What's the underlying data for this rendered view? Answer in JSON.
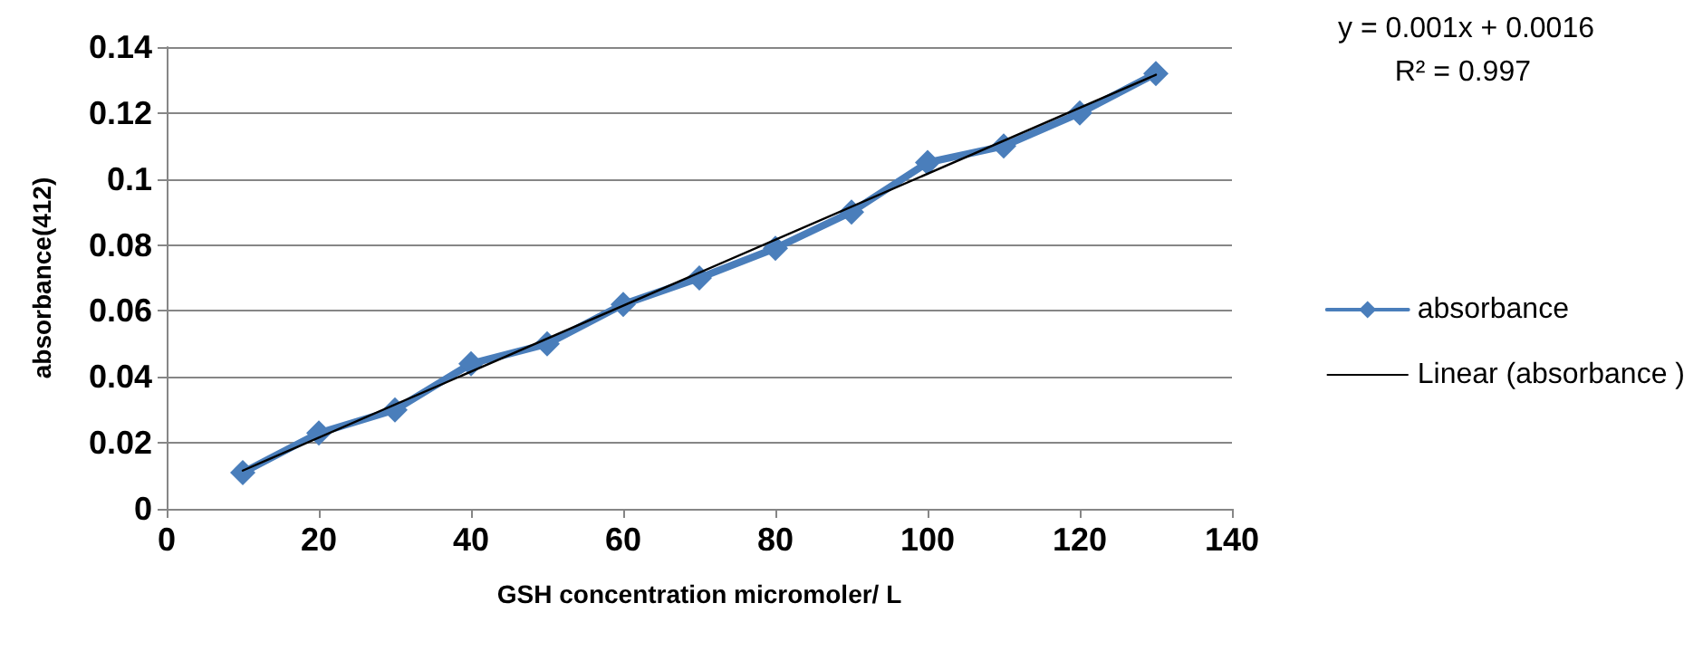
{
  "chart_data": {
    "type": "line",
    "xlabel": "GSH concentration micromoler/ L",
    "ylabel": "absorbance(412)",
    "xlim": [
      0,
      140
    ],
    "xticks": [
      0,
      20,
      40,
      60,
      80,
      100,
      120,
      140
    ],
    "ylim": [
      0,
      0.14
    ],
    "yticks": [
      0,
      0.02,
      0.04,
      0.06,
      0.08,
      0.1,
      0.12,
      0.14
    ],
    "grid": "y",
    "legend": "right",
    "marker": "diamond",
    "line_style": "solid",
    "annotations": [
      "y = 0.001x + 0.0016",
      "R² = 0.997"
    ],
    "series": [
      {
        "name": "absorbance",
        "color": "#4a7ebb",
        "x": [
          10,
          20,
          30,
          40,
          50,
          60,
          70,
          80,
          90,
          100,
          110,
          120,
          130
        ],
        "values": [
          0.011,
          0.023,
          0.03,
          0.044,
          0.05,
          0.062,
          0.07,
          0.079,
          0.09,
          0.105,
          0.11,
          0.12,
          0.132
        ]
      },
      {
        "name": "Linear (absorbance )",
        "color": "#000000",
        "marker": "none",
        "x": [
          10,
          130
        ],
        "values": [
          0.0116,
          0.1316
        ]
      }
    ]
  }
}
